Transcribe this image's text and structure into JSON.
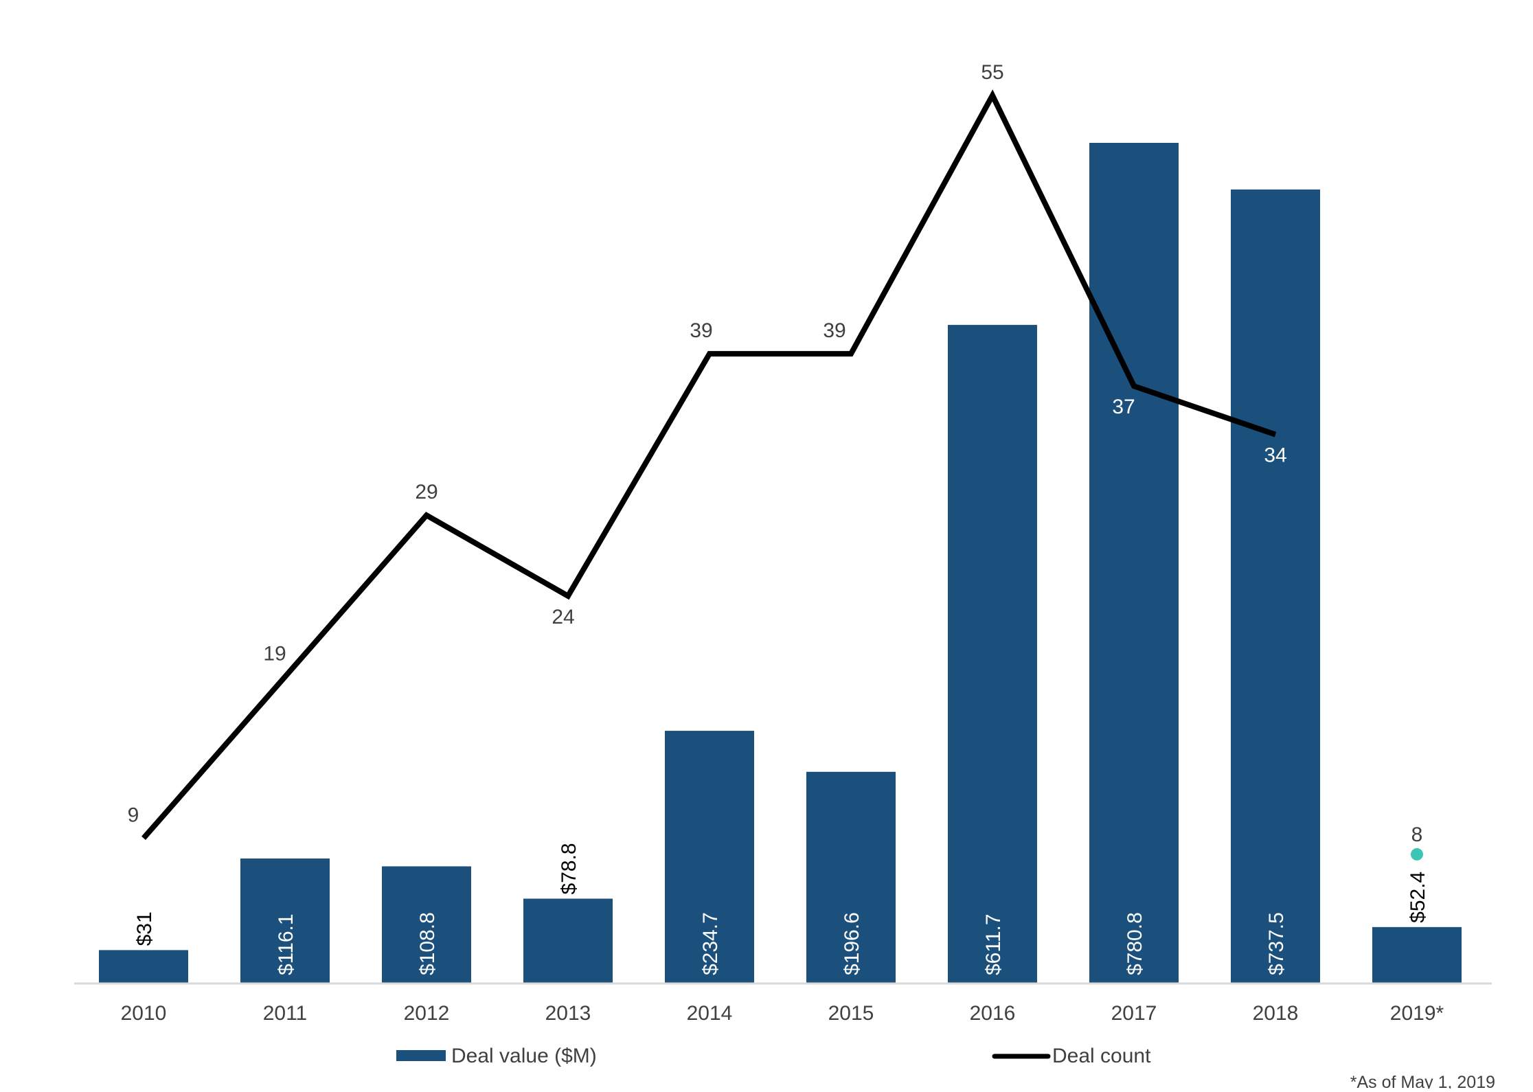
{
  "chart_data": {
    "type": "bar",
    "title": "",
    "xlabel": "",
    "ylabel": "",
    "categories": [
      "2010",
      "2011",
      "2012",
      "2013",
      "2014",
      "2015",
      "2016",
      "2017",
      "2018",
      "2019*"
    ],
    "series": [
      {
        "name": "Deal value ($M)",
        "type": "bar",
        "values": [
          31,
          116.1,
          108.8,
          78.8,
          234.7,
          196.6,
          611.7,
          780.8,
          737.5,
          52.4
        ],
        "labels": [
          "$31",
          "$116.1",
          "$108.8",
          "$78.8",
          "$234.7",
          "$196.6",
          "$611.7",
          "$780.8",
          "$737.5",
          "$52.4"
        ]
      },
      {
        "name": "Deal count",
        "type": "line",
        "values": [
          9,
          19,
          29,
          24,
          39,
          39,
          55,
          37,
          34,
          null
        ],
        "labels": [
          "9",
          "19",
          "29",
          "24",
          "39",
          "39",
          "55",
          "37",
          "34",
          ""
        ]
      },
      {
        "name": "",
        "type": "point",
        "values": [
          null,
          null,
          null,
          null,
          null,
          null,
          null,
          null,
          null,
          8
        ],
        "labels": [
          "",
          "",
          "",
          "",
          "",
          "",
          "",
          "",
          "",
          "8"
        ]
      }
    ],
    "value_ylim": [
      0,
      780.8
    ],
    "count_ylim": [
      0,
      55
    ],
    "grid": false,
    "legend": "bottom",
    "footnote": "*As of May 1, 2019",
    "colors": {
      "bar": "#1b4f7c",
      "line": "#000000",
      "point": "#3cc4b4",
      "axis": "#d9d9d9",
      "text": "#404040"
    }
  }
}
